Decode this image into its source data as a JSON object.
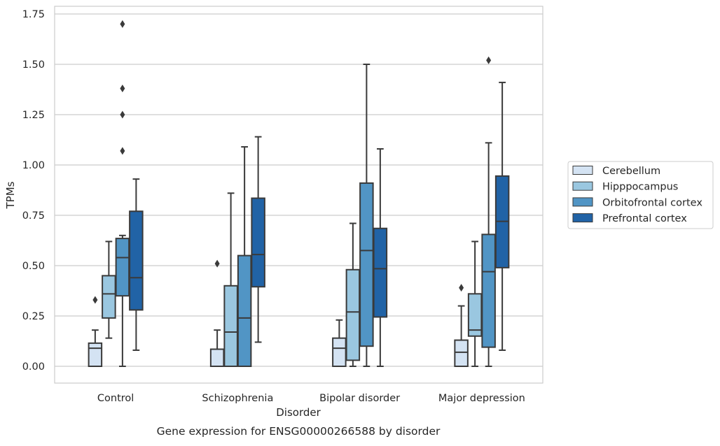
{
  "chart_data": {
    "type": "boxplot",
    "title": "Gene expression for ENSG00000266588 by disorder",
    "xlabel": "Disorder",
    "ylabel": "TPMs",
    "ylim": [
      -0.08,
      1.78
    ],
    "yticks": [
      0.0,
      0.25,
      0.5,
      0.75,
      1.0,
      1.25,
      1.5,
      1.75
    ],
    "ytick_labels": [
      "0.00",
      "0.25",
      "0.50",
      "0.75",
      "1.00",
      "1.25",
      "1.50",
      "1.75"
    ],
    "grid": "horizontal",
    "legend_position": "right",
    "categories": [
      "Control",
      "Schizophrenia",
      "Bipolar disorder",
      "Major depression"
    ],
    "series": [
      {
        "name": "Cerebellum",
        "color": "#d4e3f3",
        "boxes": [
          {
            "whisker_low": 0.0,
            "q1": 0.0,
            "median": 0.09,
            "q3": 0.115,
            "whisker_high": 0.18,
            "outliers": [
              0.33
            ]
          },
          {
            "whisker_low": 0.0,
            "q1": 0.0,
            "median": 0.0,
            "q3": 0.085,
            "whisker_high": 0.18,
            "outliers": [
              0.51
            ]
          },
          {
            "whisker_low": 0.0,
            "q1": 0.0,
            "median": 0.09,
            "q3": 0.14,
            "whisker_high": 0.23,
            "outliers": []
          },
          {
            "whisker_low": 0.0,
            "q1": 0.0,
            "median": 0.07,
            "q3": 0.13,
            "whisker_high": 0.3,
            "outliers": [
              0.39
            ]
          }
        ]
      },
      {
        "name": "Hipppocampus",
        "color": "#9ac7e0",
        "boxes": [
          {
            "whisker_low": 0.14,
            "q1": 0.24,
            "median": 0.36,
            "q3": 0.45,
            "whisker_high": 0.62,
            "outliers": []
          },
          {
            "whisker_low": 0.0,
            "q1": 0.0,
            "median": 0.17,
            "q3": 0.4,
            "whisker_high": 0.86,
            "outliers": []
          },
          {
            "whisker_low": 0.0,
            "q1": 0.03,
            "median": 0.27,
            "q3": 0.48,
            "whisker_high": 0.71,
            "outliers": []
          },
          {
            "whisker_low": 0.0,
            "q1": 0.15,
            "median": 0.18,
            "q3": 0.36,
            "whisker_high": 0.62,
            "outliers": []
          }
        ]
      },
      {
        "name": "Orbitofrontal cortex",
        "color": "#5195c5",
        "boxes": [
          {
            "whisker_low": 0.0,
            "q1": 0.35,
            "median": 0.54,
            "q3": 0.635,
            "whisker_high": 0.65,
            "outliers": [
              1.07,
              1.25,
              1.38,
              1.7
            ]
          },
          {
            "whisker_low": 0.0,
            "q1": 0.0,
            "median": 0.24,
            "q3": 0.55,
            "whisker_high": 1.09,
            "outliers": []
          },
          {
            "whisker_low": 0.0,
            "q1": 0.1,
            "median": 0.575,
            "q3": 0.91,
            "whisker_high": 1.5,
            "outliers": []
          },
          {
            "whisker_low": 0.0,
            "q1": 0.095,
            "median": 0.47,
            "q3": 0.655,
            "whisker_high": 1.11,
            "outliers": [
              1.52
            ]
          }
        ]
      },
      {
        "name": "Prefrontal cortex",
        "color": "#2163a6",
        "boxes": [
          {
            "whisker_low": 0.08,
            "q1": 0.28,
            "median": 0.44,
            "q3": 0.77,
            "whisker_high": 0.93,
            "outliers": []
          },
          {
            "whisker_low": 0.12,
            "q1": 0.395,
            "median": 0.555,
            "q3": 0.835,
            "whisker_high": 1.14,
            "outliers": []
          },
          {
            "whisker_low": 0.0,
            "q1": 0.245,
            "median": 0.485,
            "q3": 0.685,
            "whisker_high": 1.08,
            "outliers": []
          },
          {
            "whisker_low": 0.08,
            "q1": 0.49,
            "median": 0.72,
            "q3": 0.945,
            "whisker_high": 1.41,
            "outliers": []
          }
        ]
      }
    ]
  },
  "style": {
    "edge_color": "#3a3a3a",
    "grid_color": "#cccccc",
    "frame_color": "#cccccc",
    "background": "#ffffff"
  }
}
